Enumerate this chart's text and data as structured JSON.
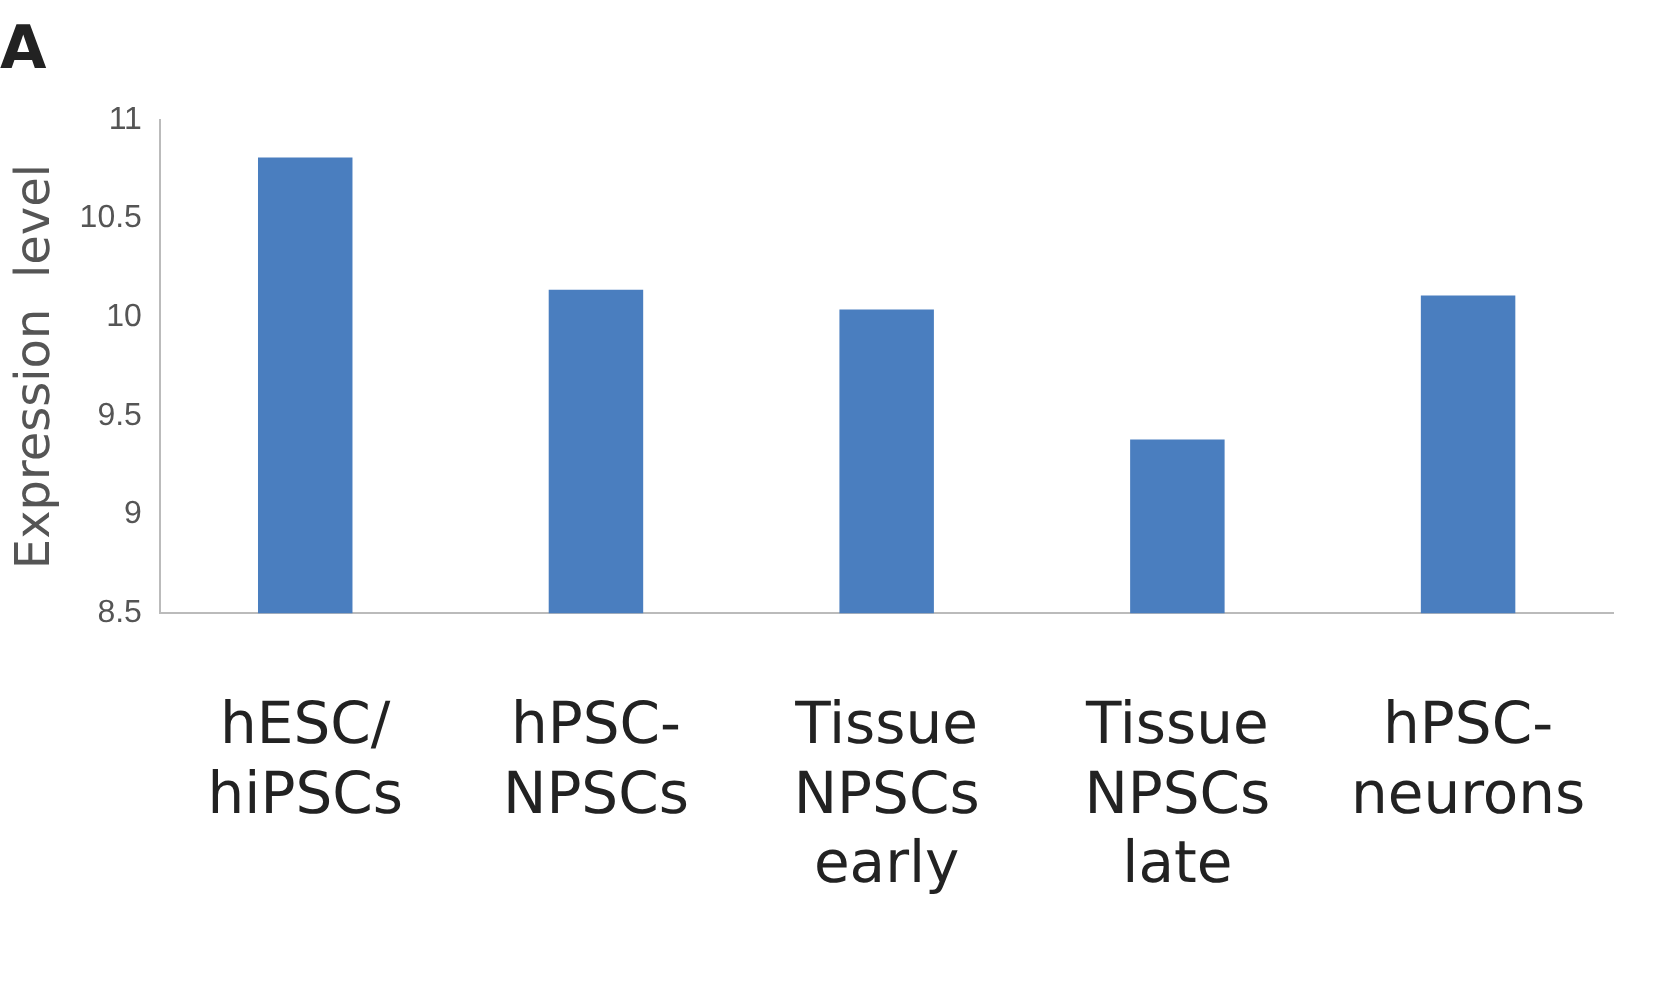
{
  "chart_data": {
    "type": "bar",
    "title": "A",
    "ylabel": "Expression  level",
    "categories": [
      "hESC/\nhiPSCs",
      "hPSC-\nNPSCs",
      "Tissue\nNPSCs\nearly",
      "Tissue\nNPSCs\nlate",
      "hPSC-\nneurons"
    ],
    "values": [
      10.81,
      10.14,
      10.04,
      9.38,
      10.11
    ],
    "color": "#4a7ebf",
    "ylim": [
      8.5,
      11
    ],
    "yticks": [
      8.5,
      9,
      9.5,
      10,
      10.5,
      11
    ],
    "grid": false,
    "legend": false
  }
}
